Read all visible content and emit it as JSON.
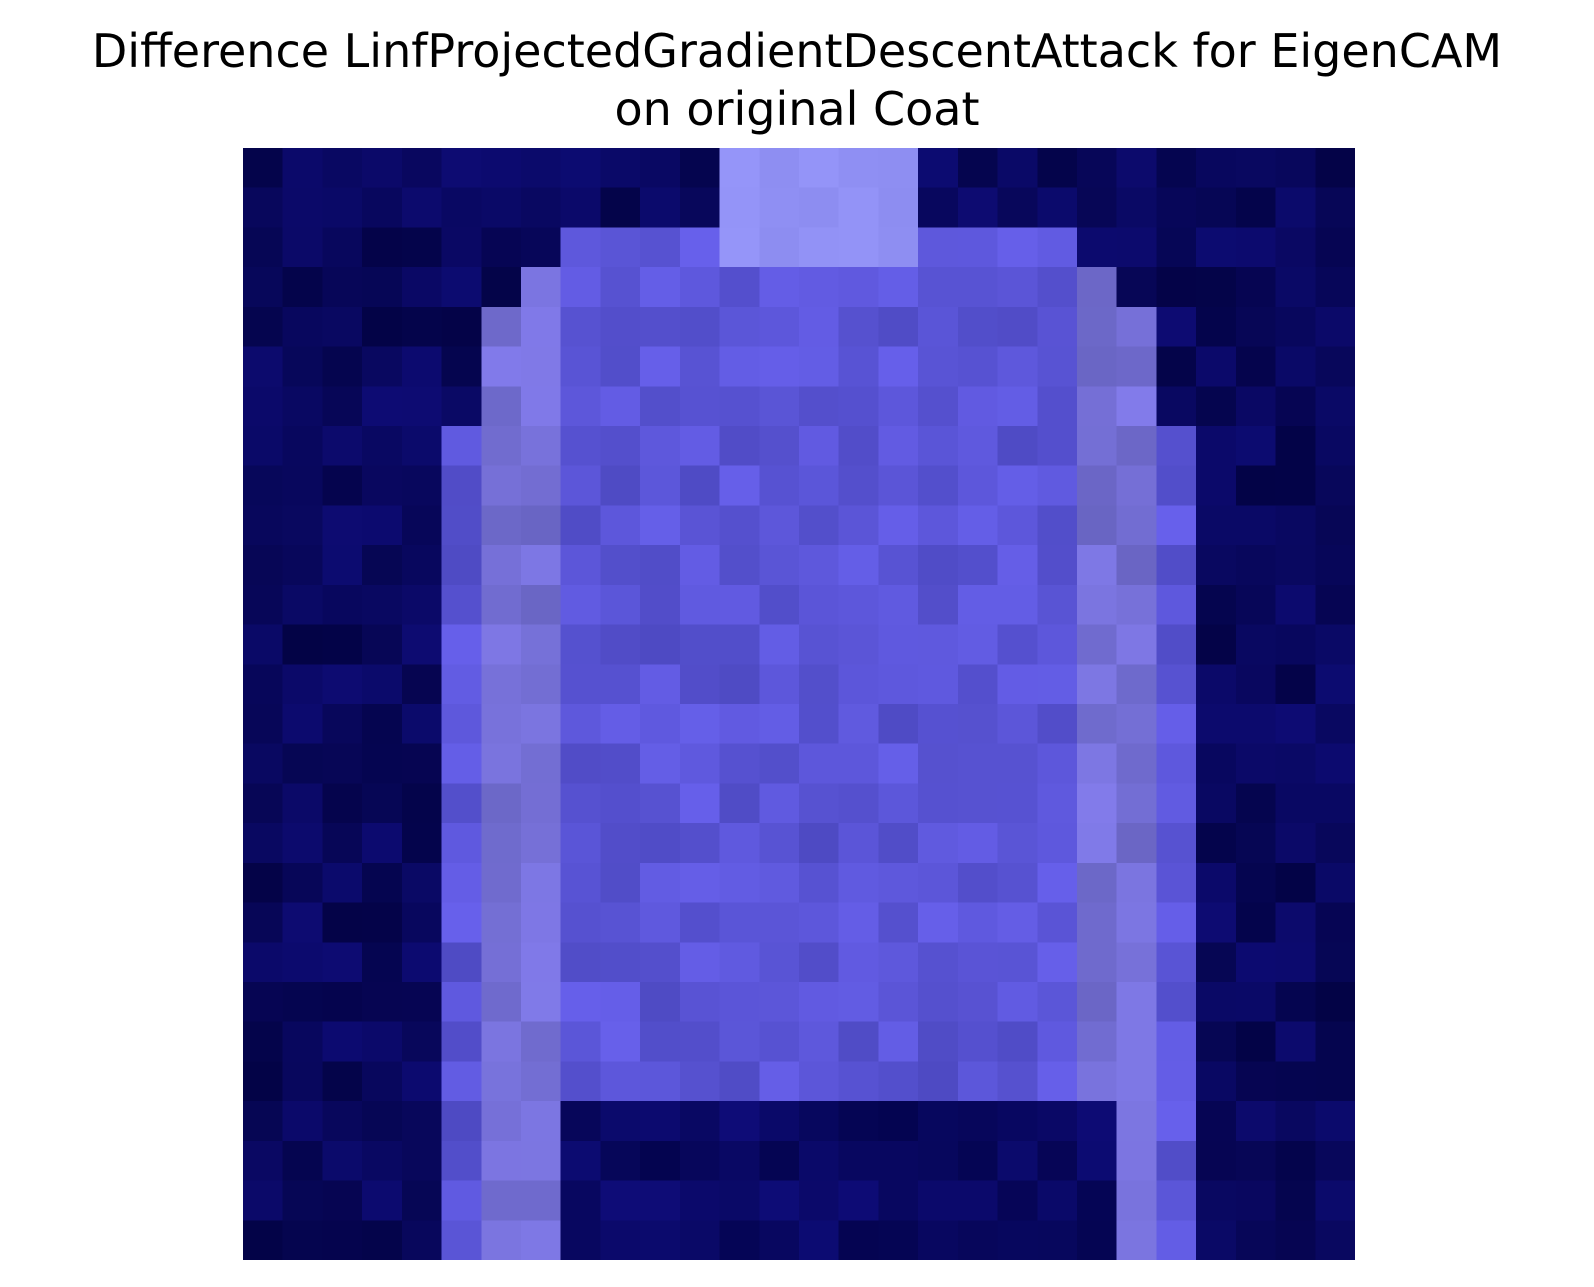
{
  "figure": {
    "title_line1": "Difference LinfProjectedGradientDescentAttack for EigenCAM",
    "title_line2": "on original Coat"
  },
  "image": {
    "subject": "coat",
    "colors": {
      "background": "#ffffff",
      "dark_navy": "#05054f",
      "mid_blue": "#4a4acd",
      "light_lavender": "#8f8ff0"
    }
  }
}
